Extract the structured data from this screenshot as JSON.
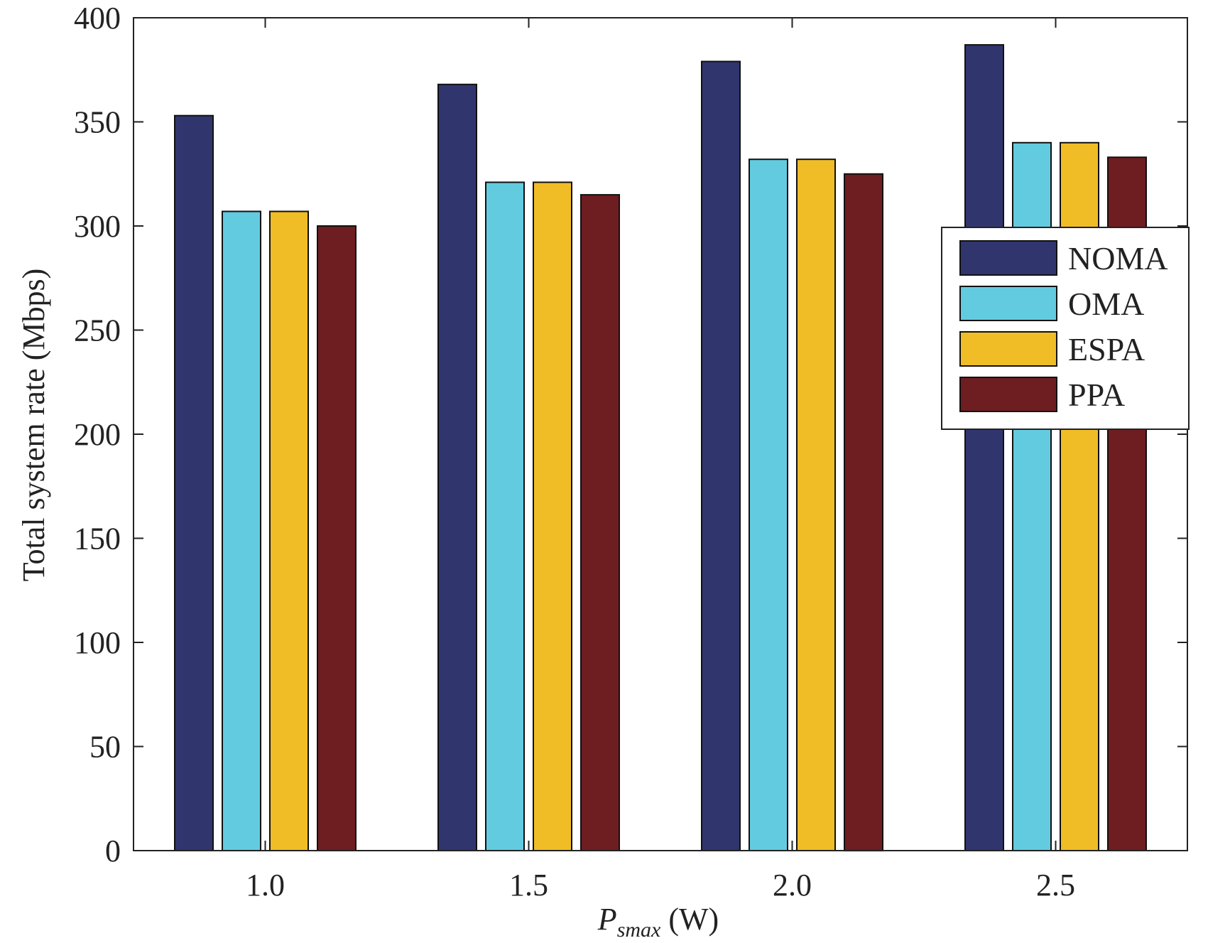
{
  "chart_data": {
    "type": "bar",
    "categories": [
      "1.0",
      "1.5",
      "2.0",
      "2.5"
    ],
    "series": [
      {
        "name": "NOMA",
        "color": "#31356e",
        "values": [
          353,
          368,
          379,
          387
        ]
      },
      {
        "name": "OMA",
        "color": "#63cbe0",
        "values": [
          307,
          321,
          332,
          340
        ]
      },
      {
        "name": "ESPA",
        "color": "#f0bd27",
        "values": [
          307,
          321,
          332,
          340
        ]
      },
      {
        "name": "PPA",
        "color": "#6e1d21",
        "values": [
          300,
          315,
          325,
          333
        ]
      }
    ],
    "yticks": [
      0,
      50,
      100,
      150,
      200,
      250,
      300,
      350,
      400
    ],
    "ylim": [
      0,
      400
    ],
    "xlabel": {
      "main": "P",
      "sub": "smax",
      "rest": " (W)"
    },
    "ylabel": "Total system rate (Mbps)",
    "legend_position": "right",
    "grid": false
  }
}
